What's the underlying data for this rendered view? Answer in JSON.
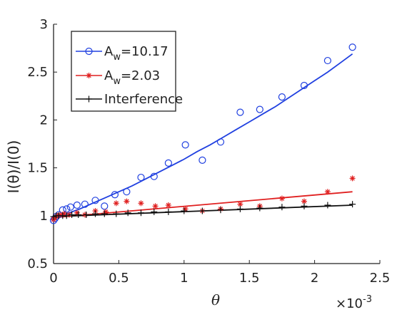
{
  "chart_data": {
    "type": "scatter",
    "xlabel": "θ",
    "ylabel": "I(θ)/I(0)",
    "x_exponent": "×10",
    "x_exponent_power": "-3",
    "xlim": [
      0,
      2.5
    ],
    "ylim": [
      0.5,
      3
    ],
    "x_ticks": [
      0,
      0.5,
      1,
      1.5,
      2,
      2.5
    ],
    "y_ticks": [
      0.5,
      1,
      1.5,
      2,
      2.5,
      3
    ],
    "x_tick_labels": [
      "0",
      "0.5",
      "1",
      "1.5",
      "2",
      "2.5"
    ],
    "y_tick_labels": [
      "0.5",
      "1",
      "1.5",
      "2",
      "2.5",
      "3"
    ],
    "grid": false,
    "legend_position": "top-left",
    "series": [
      {
        "name_main": "A",
        "name_sub": "w",
        "name_rest": "=10.17",
        "color": "#2040e0",
        "marker": "circle",
        "points": [
          [
            0.0,
            0.95
          ],
          [
            0.01,
            0.97
          ],
          [
            0.02,
            0.99
          ],
          [
            0.04,
            1.01
          ],
          [
            0.07,
            1.06
          ],
          [
            0.1,
            1.07
          ],
          [
            0.13,
            1.09
          ],
          [
            0.18,
            1.11
          ],
          [
            0.24,
            1.12
          ],
          [
            0.32,
            1.16
          ],
          [
            0.39,
            1.1
          ],
          [
            0.47,
            1.22
          ],
          [
            0.56,
            1.25
          ],
          [
            0.67,
            1.4
          ],
          [
            0.77,
            1.41
          ],
          [
            0.88,
            1.55
          ],
          [
            1.01,
            1.74
          ],
          [
            1.14,
            1.58
          ],
          [
            1.28,
            1.77
          ],
          [
            1.43,
            2.08
          ],
          [
            1.58,
            2.11
          ],
          [
            1.75,
            2.24
          ],
          [
            1.92,
            2.36
          ],
          [
            2.1,
            2.62
          ],
          [
            2.29,
            2.76
          ]
        ],
        "fit": [
          [
            0.0,
            0.97
          ],
          [
            0.1,
            1.02
          ],
          [
            0.2,
            1.07
          ],
          [
            0.3,
            1.13
          ],
          [
            0.4,
            1.19
          ],
          [
            0.5,
            1.25
          ],
          [
            0.6,
            1.31
          ],
          [
            0.7,
            1.38
          ],
          [
            0.8,
            1.45
          ],
          [
            0.9,
            1.52
          ],
          [
            1.0,
            1.59
          ],
          [
            1.1,
            1.67
          ],
          [
            1.2,
            1.74
          ],
          [
            1.3,
            1.82
          ],
          [
            1.4,
            1.9
          ],
          [
            1.5,
            1.98
          ],
          [
            1.6,
            2.06
          ],
          [
            1.7,
            2.14
          ],
          [
            1.8,
            2.23
          ],
          [
            1.9,
            2.32
          ],
          [
            2.0,
            2.41
          ],
          [
            2.1,
            2.5
          ],
          [
            2.2,
            2.6
          ],
          [
            2.29,
            2.69
          ]
        ]
      },
      {
        "name_main": "A",
        "name_sub": "w",
        "name_rest": "=2.03",
        "color": "#e02020",
        "marker": "star",
        "points": [
          [
            0.0,
            0.96
          ],
          [
            0.01,
            0.98
          ],
          [
            0.03,
            1.0
          ],
          [
            0.05,
            1.01
          ],
          [
            0.08,
            1.02
          ],
          [
            0.12,
            1.01
          ],
          [
            0.18,
            1.03
          ],
          [
            0.24,
            1.01
          ],
          [
            0.32,
            1.05
          ],
          [
            0.4,
            1.04
          ],
          [
            0.48,
            1.13
          ],
          [
            0.56,
            1.15
          ],
          [
            0.67,
            1.13
          ],
          [
            0.78,
            1.1
          ],
          [
            0.88,
            1.11
          ],
          [
            1.01,
            1.07
          ],
          [
            1.14,
            1.05
          ],
          [
            1.28,
            1.07
          ],
          [
            1.43,
            1.12
          ],
          [
            1.58,
            1.1
          ],
          [
            1.75,
            1.18
          ],
          [
            1.92,
            1.15
          ],
          [
            2.1,
            1.25
          ],
          [
            2.29,
            1.39
          ]
        ],
        "fit": [
          [
            0.0,
            0.98
          ],
          [
            2.29,
            1.25
          ]
        ]
      },
      {
        "name_main": "Interference",
        "name_sub": "",
        "name_rest": "",
        "color": "#111111",
        "marker": "plus",
        "points": [
          [
            0.0,
            0.99
          ],
          [
            0.02,
            1.0
          ],
          [
            0.04,
            1.0
          ],
          [
            0.07,
            1.0
          ],
          [
            0.1,
            1.0
          ],
          [
            0.14,
            1.01
          ],
          [
            0.19,
            1.01
          ],
          [
            0.25,
            1.01
          ],
          [
            0.32,
            1.02
          ],
          [
            0.39,
            1.02
          ],
          [
            0.48,
            1.02
          ],
          [
            0.57,
            1.03
          ],
          [
            0.67,
            1.03
          ],
          [
            0.77,
            1.04
          ],
          [
            0.88,
            1.04
          ],
          [
            1.0,
            1.05
          ],
          [
            1.14,
            1.05
          ],
          [
            1.28,
            1.06
          ],
          [
            1.43,
            1.07
          ],
          [
            1.58,
            1.08
          ],
          [
            1.75,
            1.09
          ],
          [
            1.92,
            1.1
          ],
          [
            2.1,
            1.11
          ],
          [
            2.29,
            1.12
          ]
        ],
        "fit": [
          [
            0.0,
            0.99
          ],
          [
            2.29,
            1.11
          ]
        ]
      }
    ]
  }
}
